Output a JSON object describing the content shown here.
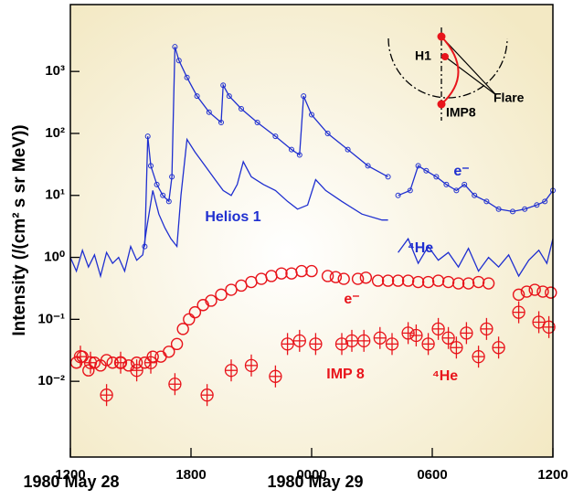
{
  "chart_data": {
    "type": "line",
    "ylabel": "Intensity (/(cm² s sr MeV))",
    "xlim": [
      0,
      24
    ],
    "xticks": [
      {
        "value": 0,
        "label": "1200"
      },
      {
        "value": 6,
        "label": "1800"
      },
      {
        "value": 12,
        "label": "0000"
      },
      {
        "value": 18,
        "label": "0600"
      },
      {
        "value": 24,
        "label": "1200"
      }
    ],
    "x_group_labels": [
      "1980 May 28",
      "1980 May 29"
    ],
    "ylim": [
      0.0006,
      12000
    ],
    "log_y": true,
    "yticks": [
      {
        "value": 0.01,
        "label": "10⁻²"
      },
      {
        "value": 0.1,
        "label": "10⁻¹"
      },
      {
        "value": 1,
        "label": "10⁰"
      },
      {
        "value": 10,
        "label": "10¹"
      },
      {
        "value": 100,
        "label": "10²"
      },
      {
        "value": 1000,
        "label": "10³"
      }
    ],
    "annotations": [
      "Helios 1",
      "e⁻",
      "⁴He",
      "e⁻",
      "IMP 8",
      "⁴He"
    ],
    "inset_labels": [
      "H1",
      "Flare",
      "IMP8"
    ],
    "series": [
      {
        "color": "#1f2fd0",
        "style": "line",
        "marker": "circle",
        "x": [
          3.7,
          3.85,
          4.0,
          4.3,
          4.6,
          4.9,
          5.05,
          5.2,
          5.4,
          5.8,
          6.3,
          6.9,
          7.5,
          7.6,
          7.9,
          8.5,
          9.3,
          10.2,
          11.0,
          11.4,
          11.6,
          12.0,
          12.8,
          13.8,
          14.8,
          15.8,
          null,
          16.3,
          16.9,
          17.3,
          17.7,
          18.2,
          18.7,
          19.2,
          19.6,
          20.1,
          20.7,
          21.3,
          22.0,
          22.6,
          23.2,
          23.6,
          24
        ],
        "values": [
          1.5,
          90,
          30,
          15,
          10,
          8,
          20,
          2500,
          1500,
          800,
          400,
          220,
          150,
          600,
          400,
          250,
          150,
          90,
          55,
          45,
          400,
          200,
          100,
          55,
          30,
          20,
          null,
          10,
          12,
          30,
          25,
          20,
          15,
          12,
          15,
          10,
          8,
          6,
          5.5,
          6,
          7,
          8,
          12
        ]
      },
      {
        "color": "#1f2fd0",
        "style": "line",
        "marker": "none",
        "x": [
          0,
          0.3,
          0.6,
          0.9,
          1.2,
          1.5,
          1.8,
          2.1,
          2.4,
          2.7,
          3.0,
          3.3,
          3.6,
          3.8,
          4.1,
          4.4,
          4.7,
          5.0,
          5.3,
          5.5,
          5.8,
          6.2,
          6.7,
          7.2,
          7.6,
          8.0,
          8.3,
          8.6,
          9.0,
          9.6,
          10.2,
          10.8,
          11.3,
          11.8,
          12.2,
          12.7,
          13.5,
          14.5,
          15.5,
          15.8,
          null,
          16.3,
          16.8,
          17.3,
          17.8,
          18.3,
          18.8,
          19.3,
          19.8,
          20.3,
          20.8,
          21.3,
          21.8,
          22.3,
          22.8,
          23.3,
          23.7,
          24
        ],
        "values": [
          1.0,
          0.6,
          1.3,
          0.7,
          1.1,
          0.5,
          1.2,
          0.8,
          1.0,
          0.6,
          1.5,
          0.9,
          1.1,
          3,
          12,
          5,
          3,
          2,
          1.5,
          10,
          80,
          50,
          30,
          18,
          12,
          10,
          15,
          35,
          20,
          15,
          12,
          8,
          6,
          7,
          18,
          12,
          8,
          5,
          4,
          4,
          null,
          1.2,
          2,
          0.8,
          1.5,
          0.9,
          1.2,
          0.7,
          1.4,
          0.6,
          1.0,
          0.7,
          1.1,
          0.5,
          0.9,
          1.3,
          0.8,
          2
        ]
      },
      {
        "color": "#e8141b",
        "style": "circle",
        "x": [
          0.3,
          0.6,
          0.9,
          1.2,
          1.5,
          1.8,
          2.1,
          2.5,
          2.9,
          3.3,
          3.7,
          4.1,
          4.5,
          4.9,
          5.3,
          5.6,
          5.9,
          6.2,
          6.6,
          7.0,
          7.5,
          8.0,
          8.5,
          9.0,
          9.5,
          10.0,
          10.5,
          11.0,
          11.5,
          12.0,
          12.8,
          13.2,
          13.6,
          14.3,
          14.7,
          15.3,
          15.8,
          16.3,
          16.8,
          17.3,
          17.8,
          18.3,
          18.8,
          19.3,
          19.8,
          20.3,
          20.8,
          22.3,
          22.7,
          23.1,
          23.5,
          23.9
        ],
        "values": [
          0.02,
          0.025,
          0.015,
          0.02,
          0.018,
          0.022,
          0.02,
          0.02,
          0.018,
          0.02,
          0.02,
          0.025,
          0.025,
          0.03,
          0.04,
          0.07,
          0.1,
          0.13,
          0.17,
          0.2,
          0.25,
          0.3,
          0.35,
          0.4,
          0.45,
          0.5,
          0.55,
          0.55,
          0.6,
          0.6,
          0.5,
          0.48,
          0.45,
          0.45,
          0.47,
          0.42,
          0.42,
          0.42,
          0.42,
          0.4,
          0.4,
          0.42,
          0.4,
          0.38,
          0.38,
          0.4,
          0.38,
          0.25,
          0.28,
          0.3,
          0.28,
          0.27
        ]
      },
      {
        "color": "#e8141b",
        "style": "crossed-circle",
        "x": [
          0.5,
          1.0,
          1.8,
          2.5,
          3.3,
          4.0,
          5.2,
          6.8,
          8.0,
          9.0,
          10.2,
          10.8,
          11.4,
          12.2,
          13.5,
          14.0,
          14.6,
          15.4,
          16.0,
          16.8,
          17.2,
          17.8,
          18.3,
          18.8,
          19.2,
          19.7,
          20.3,
          20.7,
          21.3,
          22.3,
          23.3,
          23.8
        ],
        "values": [
          0.025,
          0.02,
          0.006,
          0.02,
          0.015,
          0.02,
          0.009,
          0.006,
          0.015,
          0.018,
          0.012,
          0.04,
          0.045,
          0.04,
          0.04,
          0.045,
          0.045,
          0.05,
          0.04,
          0.06,
          0.055,
          0.04,
          0.07,
          0.05,
          0.035,
          0.06,
          0.025,
          0.07,
          0.035,
          0.13,
          0.09,
          0.075
        ]
      }
    ]
  }
}
